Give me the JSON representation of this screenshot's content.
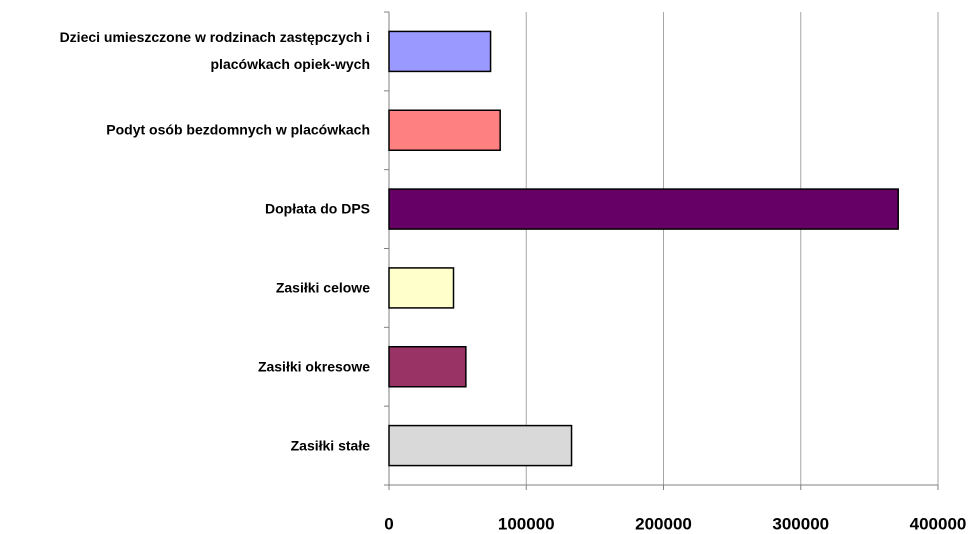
{
  "chart_data": {
    "type": "bar",
    "orientation": "horizontal",
    "categories": [
      "Dzieci umieszczone w rodzinach zastępczych i placówkach opiek-wych",
      "Podyt osób bezdomnych w placówkach",
      "Dopłata do DPS",
      "Zasiłki celowe",
      "Zasiłki okresowe",
      "Zasiłki stałe"
    ],
    "values": [
      74000,
      81000,
      371000,
      47000,
      56000,
      133000
    ],
    "colors": [
      "#9999ff",
      "#ff8080",
      "#660066",
      "#ffffcc",
      "#993366",
      "#d9d9d9"
    ],
    "xlim": [
      0,
      400000
    ],
    "xticks": [
      0,
      100000,
      200000,
      300000,
      400000
    ],
    "grid": true
  }
}
